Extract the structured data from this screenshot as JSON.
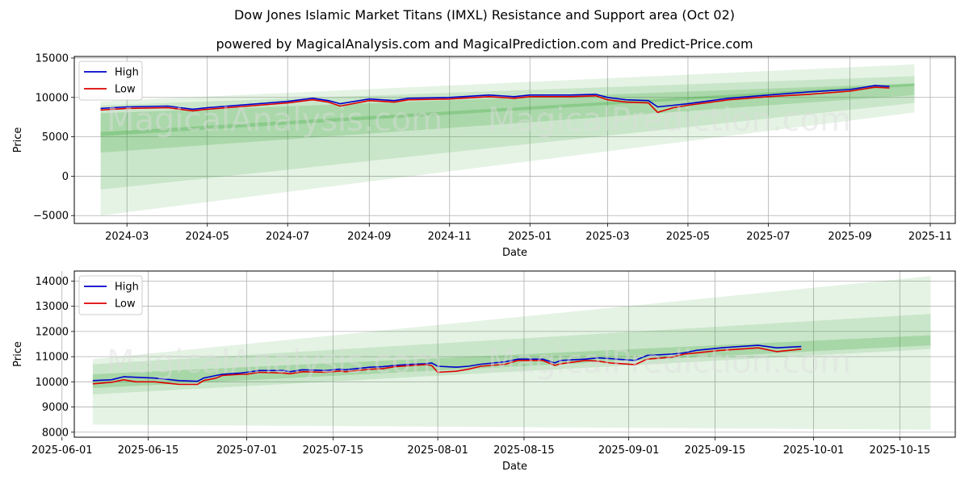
{
  "title": "Dow Jones Islamic Market Titans (IMXL) Resistance and Support area (Oct 02)",
  "subtitle": "powered by MagicalAnalysis.com and MagicalPrediction.com and Predict-Price.com",
  "watermarks": [
    "MagicalAnalysis.com",
    "MagicalPrediction.com"
  ],
  "colors": {
    "high": "#0000cc",
    "low": "#dd0000",
    "band": "#2ca02c",
    "grid": "#b0b0b0"
  },
  "chart_data": [
    {
      "type": "line",
      "xlabel": "Date",
      "ylabel": "Price",
      "x_range": [
        "2024-01-21",
        "2025-11-20"
      ],
      "ylim": [
        -6000,
        15200
      ],
      "x_ticks": [
        {
          "date": "2024-03-01",
          "label": "2024-03"
        },
        {
          "date": "2024-05-01",
          "label": "2024-05"
        },
        {
          "date": "2024-07-01",
          "label": "2024-07"
        },
        {
          "date": "2024-09-01",
          "label": "2024-09"
        },
        {
          "date": "2024-11-01",
          "label": "2024-11"
        },
        {
          "date": "2025-01-01",
          "label": "2025-01"
        },
        {
          "date": "2025-03-01",
          "label": "2025-03"
        },
        {
          "date": "2025-05-01",
          "label": "2025-05"
        },
        {
          "date": "2025-07-01",
          "label": "2025-07"
        },
        {
          "date": "2025-09-01",
          "label": "2025-09"
        },
        {
          "date": "2025-11-01",
          "label": "2025-11"
        }
      ],
      "y_ticks": [
        -5000,
        0,
        5000,
        10000,
        15000
      ],
      "y_tick_labels": [
        "−5000",
        "0",
        "5000",
        "10000",
        "15000"
      ],
      "legend": {
        "placement": "top-left",
        "entries": [
          "High",
          "Low"
        ]
      },
      "bands": [
        {
          "x": [
            "2024-02-10",
            "2025-10-20"
          ],
          "upper": [
            9500,
            14200
          ],
          "lower": [
            -5000,
            8100
          ],
          "opacity": 0.12
        },
        {
          "x": [
            "2024-02-10",
            "2025-10-20"
          ],
          "upper": [
            9000,
            12700
          ],
          "lower": [
            -1700,
            9300
          ],
          "opacity": 0.15
        },
        {
          "x": [
            "2024-02-10",
            "2025-10-20"
          ],
          "upper": [
            8000,
            11800
          ],
          "lower": [
            3000,
            10300
          ],
          "opacity": 0.2
        },
        {
          "x": [
            "2024-02-10",
            "2025-10-20"
          ],
          "upper": [
            5600,
            11750
          ],
          "lower": [
            5100,
            11450
          ],
          "opacity": 0.25
        }
      ],
      "series": [
        {
          "name": "High",
          "color": "#0000cc",
          "x": [
            "2024-02-10",
            "2024-03-01",
            "2024-04-01",
            "2024-04-20",
            "2024-05-01",
            "2024-06-01",
            "2024-07-01",
            "2024-07-20",
            "2024-08-01",
            "2024-08-10",
            "2024-09-01",
            "2024-09-20",
            "2024-10-01",
            "2024-11-01",
            "2024-12-01",
            "2024-12-20",
            "2025-01-01",
            "2025-02-01",
            "2025-02-20",
            "2025-03-01",
            "2025-03-15",
            "2025-04-01",
            "2025-04-08",
            "2025-04-20",
            "2025-05-01",
            "2025-06-01",
            "2025-07-01",
            "2025-08-01",
            "2025-09-01",
            "2025-09-20",
            "2025-10-01"
          ],
          "values": [
            8600,
            8800,
            8900,
            8500,
            8700,
            9100,
            9500,
            9900,
            9600,
            9200,
            9800,
            9600,
            9900,
            10000,
            10300,
            10100,
            10300,
            10300,
            10400,
            10000,
            9700,
            9600,
            8800,
            9000,
            9200,
            9900,
            10300,
            10700,
            11000,
            11500,
            11400
          ]
        },
        {
          "name": "Low",
          "color": "#dd0000",
          "x": [
            "2024-02-10",
            "2024-03-01",
            "2024-04-01",
            "2024-04-20",
            "2024-05-01",
            "2024-06-01",
            "2024-07-01",
            "2024-07-20",
            "2024-08-01",
            "2024-08-10",
            "2024-09-01",
            "2024-09-20",
            "2024-10-01",
            "2024-11-01",
            "2024-12-01",
            "2024-12-20",
            "2025-01-01",
            "2025-02-01",
            "2025-02-20",
            "2025-03-01",
            "2025-03-15",
            "2025-04-01",
            "2025-04-08",
            "2025-04-20",
            "2025-05-01",
            "2025-06-01",
            "2025-07-01",
            "2025-08-01",
            "2025-09-01",
            "2025-09-20",
            "2025-10-01"
          ],
          "values": [
            8400,
            8600,
            8700,
            8300,
            8500,
            8900,
            9300,
            9700,
            9400,
            8900,
            9600,
            9400,
            9700,
            9800,
            10100,
            9900,
            10100,
            10100,
            10200,
            9700,
            9400,
            9300,
            8100,
            8700,
            9000,
            9700,
            10100,
            10400,
            10800,
            11300,
            11200
          ]
        }
      ]
    },
    {
      "type": "line",
      "xlabel": "Date",
      "ylabel": "Price",
      "x_range": [
        "2025-06-03",
        "2025-10-24"
      ],
      "ylim": [
        7800,
        14400
      ],
      "x_ticks": [
        {
          "date": "2025-06-01",
          "label": "2025-06-01"
        },
        {
          "date": "2025-06-15",
          "label": "2025-06-15"
        },
        {
          "date": "2025-07-01",
          "label": "2025-07-01"
        },
        {
          "date": "2025-07-15",
          "label": "2025-07-15"
        },
        {
          "date": "2025-08-01",
          "label": "2025-08-01"
        },
        {
          "date": "2025-08-15",
          "label": "2025-08-15"
        },
        {
          "date": "2025-09-01",
          "label": "2025-09-01"
        },
        {
          "date": "2025-09-15",
          "label": "2025-09-15"
        },
        {
          "date": "2025-10-01",
          "label": "2025-10-01"
        },
        {
          "date": "2025-10-15",
          "label": "2025-10-15"
        }
      ],
      "y_ticks": [
        8000,
        9000,
        10000,
        11000,
        12000,
        13000,
        14000
      ],
      "y_tick_labels": [
        "8000",
        "9000",
        "10000",
        "11000",
        "12000",
        "13000",
        "14000"
      ],
      "legend": {
        "placement": "top-left",
        "entries": [
          "High",
          "Low"
        ]
      },
      "bands": [
        {
          "x": [
            "2025-06-06",
            "2025-10-20"
          ],
          "upper": [
            10900,
            14200
          ],
          "lower": [
            8300,
            8100
          ],
          "opacity": 0.12
        },
        {
          "x": [
            "2025-06-06",
            "2025-10-20"
          ],
          "upper": [
            10700,
            12700
          ],
          "lower": [
            9500,
            11300
          ],
          "opacity": 0.15
        },
        {
          "x": [
            "2025-06-06",
            "2025-10-20"
          ],
          "upper": [
            10300,
            11850
          ],
          "lower": [
            9750,
            11450
          ],
          "opacity": 0.22
        }
      ],
      "series": [
        {
          "name": "High",
          "color": "#0000cc",
          "x": [
            "2025-06-06",
            "2025-06-09",
            "2025-06-11",
            "2025-06-13",
            "2025-06-16",
            "2025-06-18",
            "2025-06-20",
            "2025-06-23",
            "2025-06-24",
            "2025-06-26",
            "2025-06-27",
            "2025-06-30",
            "2025-07-01",
            "2025-07-03",
            "2025-07-07",
            "2025-07-08",
            "2025-07-10",
            "2025-07-14",
            "2025-07-16",
            "2025-07-17",
            "2025-07-21",
            "2025-07-23",
            "2025-07-25",
            "2025-07-28",
            "2025-07-30",
            "2025-07-31",
            "2025-08-01",
            "2025-08-04",
            "2025-08-06",
            "2025-08-08",
            "2025-08-12",
            "2025-08-14",
            "2025-08-18",
            "2025-08-20",
            "2025-08-21",
            "2025-08-25",
            "2025-08-27",
            "2025-08-29",
            "2025-09-02",
            "2025-09-04",
            "2025-09-08",
            "2025-09-10",
            "2025-09-12",
            "2025-09-16",
            "2025-09-19",
            "2025-09-22",
            "2025-09-25",
            "2025-09-29"
          ],
          "values": [
            10050,
            10080,
            10200,
            10180,
            10150,
            10100,
            10050,
            10020,
            10150,
            10250,
            10300,
            10350,
            10380,
            10450,
            10450,
            10400,
            10480,
            10450,
            10500,
            10480,
            10580,
            10600,
            10650,
            10700,
            10720,
            10750,
            10620,
            10580,
            10620,
            10700,
            10800,
            10900,
            10900,
            10750,
            10850,
            10900,
            10950,
            10920,
            10850,
            11050,
            11100,
            11150,
            11250,
            11350,
            11400,
            11450,
            11350,
            11400
          ]
        },
        {
          "name": "Low",
          "color": "#dd0000",
          "x": [
            "2025-06-06",
            "2025-06-09",
            "2025-06-11",
            "2025-06-13",
            "2025-06-16",
            "2025-06-18",
            "2025-06-20",
            "2025-06-23",
            "2025-06-24",
            "2025-06-26",
            "2025-06-27",
            "2025-06-30",
            "2025-07-01",
            "2025-07-03",
            "2025-07-07",
            "2025-07-08",
            "2025-07-10",
            "2025-07-14",
            "2025-07-16",
            "2025-07-17",
            "2025-07-21",
            "2025-07-23",
            "2025-07-25",
            "2025-07-28",
            "2025-07-30",
            "2025-07-31",
            "2025-08-01",
            "2025-08-04",
            "2025-08-06",
            "2025-08-08",
            "2025-08-12",
            "2025-08-14",
            "2025-08-18",
            "2025-08-20",
            "2025-08-21",
            "2025-08-25",
            "2025-08-27",
            "2025-08-29",
            "2025-09-02",
            "2025-09-04",
            "2025-09-08",
            "2025-09-10",
            "2025-09-12",
            "2025-09-16",
            "2025-09-19",
            "2025-09-22",
            "2025-09-25",
            "2025-09-29"
          ],
          "values": [
            9920,
            9980,
            10080,
            10000,
            10000,
            9950,
            9900,
            9900,
            10050,
            10150,
            10250,
            10300,
            10300,
            10380,
            10350,
            10320,
            10400,
            10380,
            10430,
            10400,
            10500,
            10520,
            10600,
            10650,
            10680,
            10650,
            10380,
            10420,
            10500,
            10620,
            10700,
            10850,
            10850,
            10650,
            10720,
            10850,
            10820,
            10750,
            10680,
            10900,
            10980,
            11100,
            11150,
            11250,
            11300,
            11350,
            11200,
            11300
          ]
        }
      ]
    }
  ]
}
